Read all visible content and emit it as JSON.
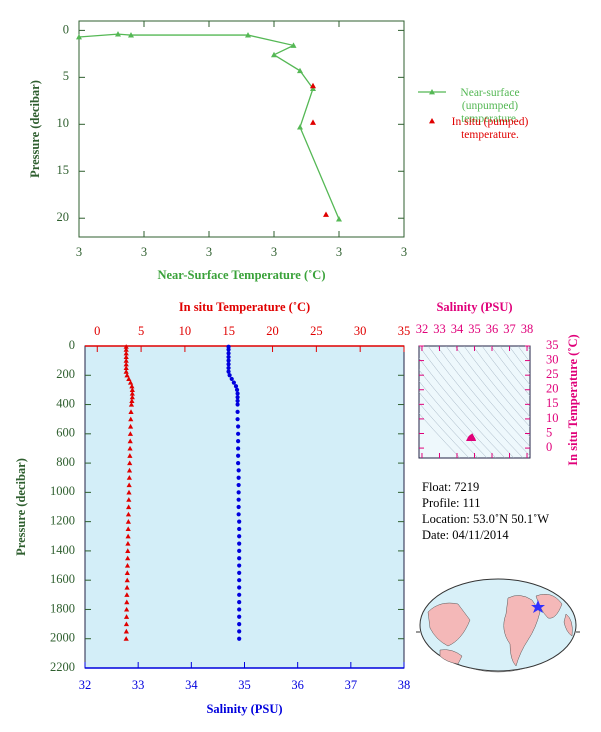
{
  "chart_data": [
    {
      "type": "profile-line",
      "xlabel": "Near-Surface Temperature (˚C)",
      "ylabel": "Pressure (decibar)",
      "xlim": [
        2.8,
        3.3
      ],
      "xticks": [
        {
          "value": 2.8,
          "label": "3"
        },
        {
          "value": 2.9,
          "label": "3"
        },
        {
          "value": 3.0,
          "label": "3"
        },
        {
          "value": 3.1,
          "label": "3"
        },
        {
          "value": 3.2,
          "label": "3"
        },
        {
          "value": 3.3,
          "label": "3"
        }
      ],
      "ylim": [
        -1,
        22
      ],
      "yticks": [
        0,
        5,
        10,
        15,
        20
      ],
      "y_inverted": true,
      "legend": "right",
      "series": [
        {
          "name": "Near-surface (unpumped) temperature.",
          "color": "#55b855",
          "line": true,
          "x": [
            2.8,
            2.86,
            2.88,
            3.06,
            3.13,
            3.1,
            3.14,
            3.16,
            3.14,
            3.2
          ],
          "y": [
            0.7,
            0.4,
            0.5,
            0.5,
            1.6,
            2.6,
            4.3,
            6.2,
            10.3,
            20.1
          ]
        },
        {
          "name": "In situ (pumped) temperature.",
          "color": "#e00000",
          "line": false,
          "x": [
            3.16,
            3.16,
            3.18
          ],
          "y": [
            5.9,
            9.8,
            19.6
          ]
        }
      ]
    },
    {
      "type": "profile-scatter",
      "ylabel": "Pressure (decibar)",
      "ylim": [
        0,
        2200
      ],
      "yticks": [
        0,
        200,
        400,
        600,
        800,
        1000,
        1200,
        1400,
        1600,
        1800,
        2000,
        2200
      ],
      "y_inverted": true,
      "background": "#d3eef8",
      "pressure": [
        5,
        25,
        50,
        75,
        100,
        125,
        150,
        175,
        200,
        225,
        250,
        275,
        300,
        325,
        350,
        375,
        400,
        450,
        500,
        550,
        600,
        650,
        700,
        750,
        800,
        850,
        900,
        950,
        1000,
        1050,
        1100,
        1150,
        1200,
        1250,
        1300,
        1350,
        1400,
        1450,
        1500,
        1550,
        1600,
        1650,
        1700,
        1750,
        1800,
        1850,
        1900,
        1950,
        2000
      ],
      "series": [
        {
          "xlabel": "In situ Temperature (˚C)",
          "color": "#e00000",
          "marker": "triangle",
          "axis": "top",
          "xlim": [
            -1.4,
            35
          ],
          "xticks": [
            0,
            5,
            10,
            15,
            20,
            25,
            30,
            35
          ],
          "values": [
            3.3,
            3.3,
            3.3,
            3.3,
            3.3,
            3.3,
            3.3,
            3.3,
            3.4,
            3.6,
            3.8,
            3.95,
            4.0,
            4.0,
            4.0,
            3.95,
            3.9,
            3.85,
            3.82,
            3.8,
            3.78,
            3.76,
            3.74,
            3.72,
            3.7,
            3.68,
            3.66,
            3.64,
            3.62,
            3.6,
            3.58,
            3.56,
            3.55,
            3.53,
            3.52,
            3.5,
            3.48,
            3.47,
            3.45,
            3.43,
            3.42,
            3.4,
            3.38,
            3.37,
            3.35,
            3.34,
            3.33,
            3.32,
            3.3
          ]
        },
        {
          "xlabel": "Salinity (PSU)",
          "color": "#0000dd",
          "marker": "circle",
          "axis": "bottom",
          "xlim": [
            32,
            38
          ],
          "xticks": [
            32,
            33,
            34,
            35,
            36,
            37,
            38
          ],
          "values": [
            34.7,
            34.7,
            34.7,
            34.7,
            34.7,
            34.7,
            34.7,
            34.7,
            34.72,
            34.76,
            34.8,
            34.84,
            34.86,
            34.87,
            34.87,
            34.87,
            34.87,
            34.87,
            34.87,
            34.88,
            34.88,
            34.88,
            34.88,
            34.88,
            34.88,
            34.89,
            34.89,
            34.89,
            34.89,
            34.89,
            34.89,
            34.89,
            34.9,
            34.9,
            34.9,
            34.9,
            34.9,
            34.9,
            34.9,
            34.9,
            34.9,
            34.9,
            34.9,
            34.9,
            34.9,
            34.9,
            34.9,
            34.9,
            34.9
          ]
        }
      ]
    },
    {
      "type": "ts-diagram",
      "xlabel": "Salinity (PSU)",
      "ylabel": "In situ Temperature (˚C)",
      "xlim": [
        31.83,
        38.17
      ],
      "xticks": [
        32,
        33,
        34,
        35,
        36,
        37,
        38
      ],
      "ylim": [
        -3.4,
        35
      ],
      "yticks": [
        0,
        5,
        10,
        15,
        20,
        25,
        30,
        35
      ],
      "color": "#e0007a"
    }
  ],
  "info": {
    "lines": [
      "Float:  7219",
      "Profile:  111",
      "Location:  53.0˚N  50.1˚W",
      "Date:  04/11/2014"
    ]
  }
}
